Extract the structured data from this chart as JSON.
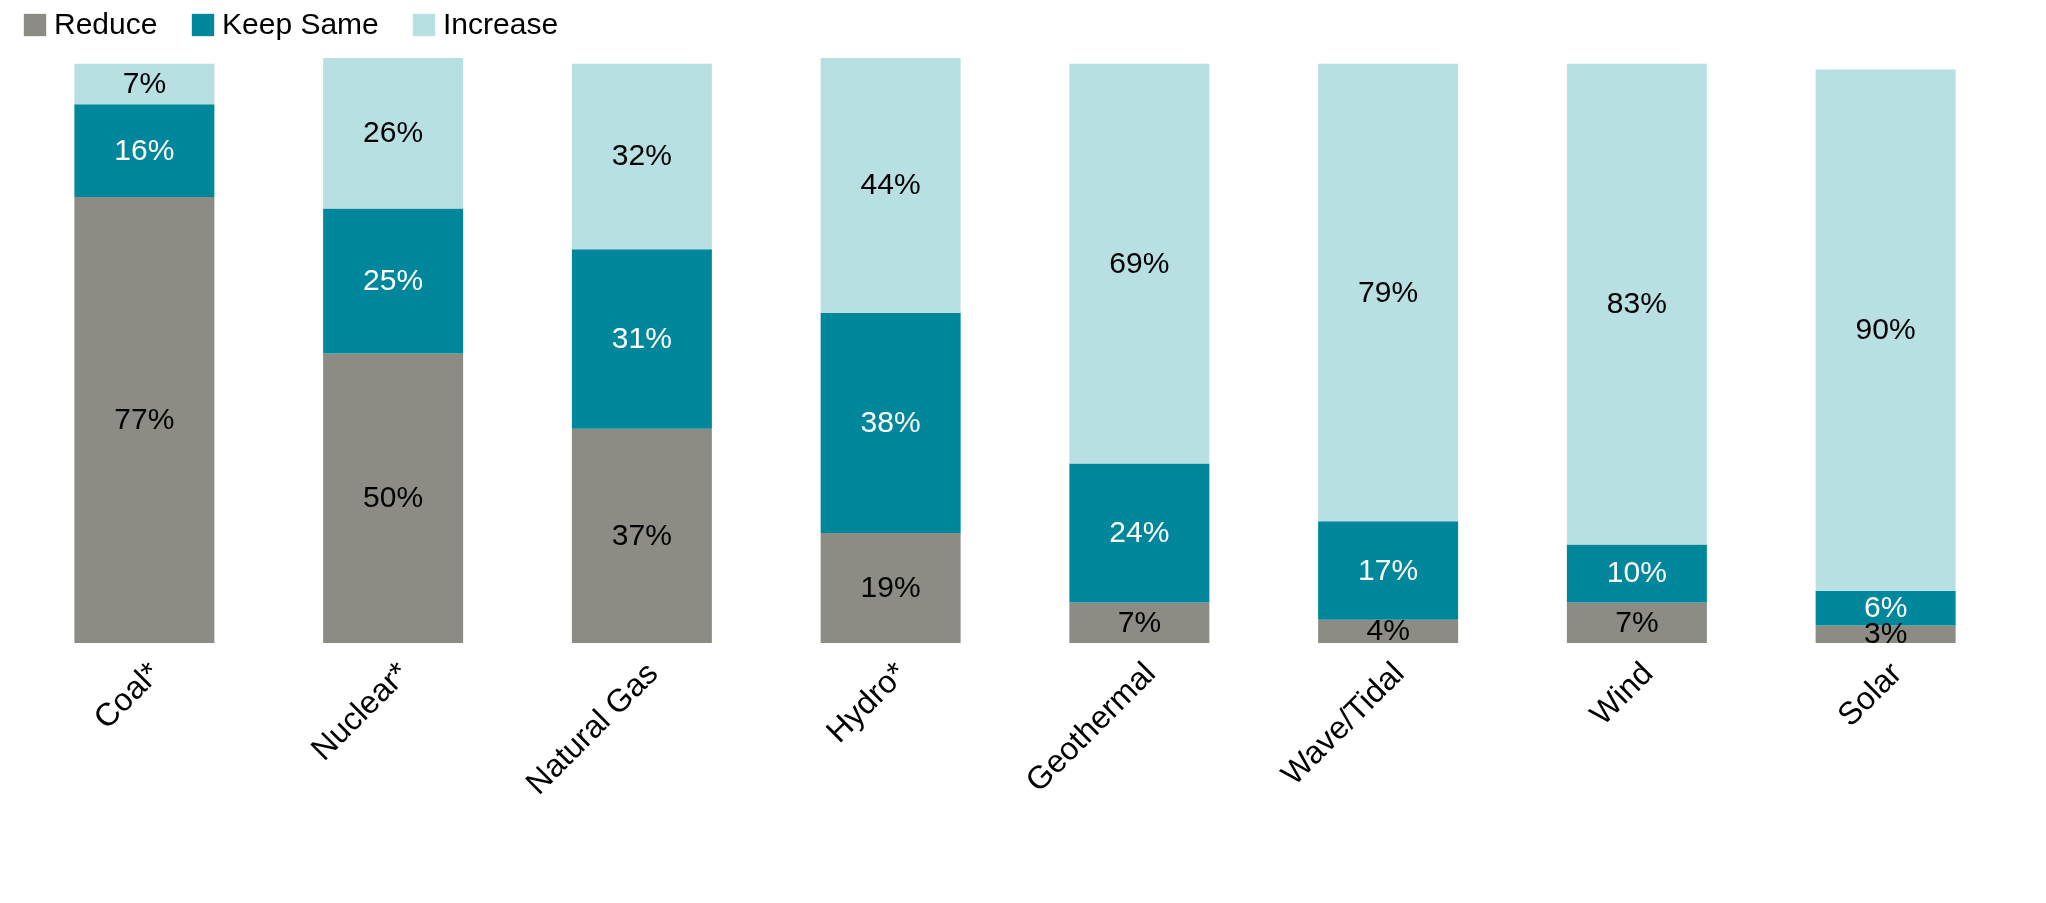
{
  "chart_data": {
    "type": "bar",
    "stacked": true,
    "legend": "top",
    "tick_labels": "x",
    "categories": [
      "Coal*",
      "Nuclear*",
      "Natural Gas",
      "Hydro*",
      "Geothermal",
      "Wave/Tidal",
      "Wind",
      "Solar"
    ],
    "series": [
      {
        "name": "Reduce",
        "color": "#8c8c85",
        "values": [
          77,
          50,
          37,
          19,
          7,
          4,
          7,
          3
        ],
        "value_labels": [
          "77%",
          "50%",
          "37%",
          "19%",
          "7%",
          "4%",
          "7%",
          "3%"
        ]
      },
      {
        "name": "Keep Same",
        "color": "#00879b",
        "values": [
          16,
          25,
          31,
          38,
          24,
          17,
          10,
          6
        ],
        "value_labels": [
          "16%",
          "25%",
          "31%",
          "38%",
          "24%",
          "17%",
          "10%",
          "6%"
        ]
      },
      {
        "name": "Increase",
        "color": "#b8dfe2",
        "values": [
          7,
          26,
          32,
          44,
          69,
          79,
          83,
          90
        ],
        "value_labels": [
          "7%",
          "26%",
          "32%",
          "44%",
          "69%",
          "79%",
          "83%",
          "90%"
        ]
      }
    ]
  }
}
